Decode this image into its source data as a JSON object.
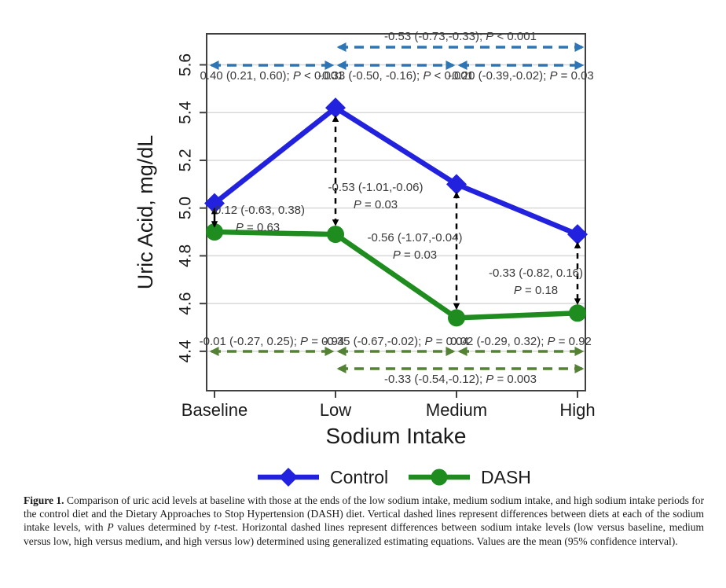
{
  "chart_data": {
    "type": "line",
    "title": "",
    "xlabel": "Sodium Intake",
    "ylabel": "Uric Acid, mg/dL",
    "categories": [
      "Baseline",
      "Low",
      "Medium",
      "High"
    ],
    "series": [
      {
        "name": "Control",
        "marker": "diamond",
        "color": "#2222DE",
        "values": [
          5.02,
          5.42,
          5.1,
          4.89
        ]
      },
      {
        "name": "DASH",
        "marker": "circle",
        "color": "#1E8C1E",
        "values": [
          4.9,
          4.89,
          4.54,
          4.56
        ]
      }
    ],
    "ylim": [
      4.235,
      5.73
    ],
    "yticks": [
      4.4,
      4.6,
      4.8,
      5.0,
      5.2,
      5.4,
      5.6
    ],
    "grid": true,
    "legend_position": "bottom-center",
    "annotations": {
      "between_diets": [
        {
          "category": "Baseline",
          "line1": "-0.12 (-0.63, 0.38)",
          "line2": "P = 0.63"
        },
        {
          "category": "Low",
          "line1": "-0.53 (-1.01,-0.06)",
          "line2": "P = 0.03"
        },
        {
          "category": "Medium",
          "line1": "-0.56 (-1.07,-0.04)",
          "line2": "P = 0.03"
        },
        {
          "category": "High",
          "line1": "-0.33 (-0.82, 0.16)",
          "line2": "P = 0.18"
        }
      ],
      "control_between_levels": [
        {
          "from": "Low",
          "to": "High",
          "row": "upper",
          "label": "-0.53 (-0.73,-0.33); P < 0.001"
        },
        {
          "from": "Baseline",
          "to": "Low",
          "row": "lower",
          "label": "0.40 (0.21, 0.60); P < 0.001"
        },
        {
          "from": "Low",
          "to": "Medium",
          "row": "lower",
          "label": "-0.33 (-0.50, -0.16); P < 0.001"
        },
        {
          "from": "Medium",
          "to": "High",
          "row": "lower",
          "label": "-0.20 (-0.39,-0.02); P = 0.03"
        }
      ],
      "dash_between_levels": [
        {
          "from": "Baseline",
          "to": "Low",
          "row": "upper",
          "label": "-0.01 (-0.27, 0.25); P = 0.94"
        },
        {
          "from": "Low",
          "to": "Medium",
          "row": "upper",
          "label": "-0.35 (-0.67,-0.02); P = 0.04"
        },
        {
          "from": "Medium",
          "to": "High",
          "row": "upper",
          "label": "0.02 (-0.29, 0.32); P = 0.92"
        },
        {
          "from": "Low",
          "to": "High",
          "row": "lower",
          "label": "-0.33 (-0.54,-0.12); P = 0.003"
        }
      ]
    },
    "colors": {
      "control_line": "#2222DE",
      "dash_line": "#1E8C1E",
      "control_arrows": "#2E75B6",
      "dash_arrows": "#548235",
      "between_arrows": "#000000",
      "gridline": "#D9D9D9",
      "axis": "#404040",
      "axis_text": "#1a1a1a",
      "annotation_text": "#3A3A3A"
    }
  },
  "caption": {
    "segments": [
      {
        "text": "Figure 1.",
        "bold": true
      },
      {
        "text": "  Comparison of uric acid levels at baseline with those at the ends of the low sodium intake, medium sodium intake, and high sodium intake periods for the control diet and the Dietary Approaches to Stop Hypertension (DASH) diet. Vertical dashed lines represent differences between diets at each of the sodium intake levels, with "
      },
      {
        "text": "P",
        "italic": true
      },
      {
        "text": " values determined by "
      },
      {
        "text": "t",
        "italic": true
      },
      {
        "text": "-test. Horizontal dashed lines represent differences between sodium intake levels (low versus baseline, medium versus low, high versus medium, and high versus low) determined using generalized estimating equations. Values are the mean (95% confidence interval)."
      }
    ]
  }
}
